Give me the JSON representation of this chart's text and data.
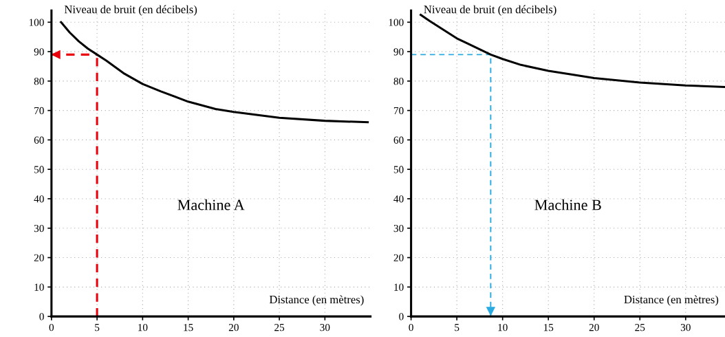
{
  "chart_data": [
    {
      "type": "line",
      "xlabel": "Distance (en mètres)",
      "ylabel": "Niveau de bruit (en décibels)",
      "annotations": [
        "Machine A"
      ],
      "x": [
        1.05,
        2,
        3,
        4,
        5,
        6,
        8,
        10,
        12,
        15,
        18,
        20,
        25,
        30,
        34.7
      ],
      "series": [
        {
          "color": "#000000",
          "values": [
            100,
            96.5,
            93.5,
            91,
            89,
            87,
            82.5,
            79,
            76.5,
            73,
            70.5,
            69.5,
            67.5,
            66.5,
            66
          ]
        }
      ],
      "xlim": [
        0,
        35
      ],
      "ylim": [
        0,
        104
      ],
      "xticks": [
        0,
        5,
        10,
        15,
        20,
        25,
        30
      ],
      "yticks": [
        0,
        10,
        20,
        30,
        40,
        50,
        60,
        70,
        80,
        90,
        100
      ],
      "grid": true,
      "marker": "none",
      "line_style": "solid",
      "ref_lines": [
        {
          "axis": "x",
          "value": 5,
          "color": "#e8000b",
          "line_style": "dashed"
        },
        {
          "axis": "y",
          "value": 89,
          "color": "#e8000b",
          "line_style": "dashed"
        }
      ]
    },
    {
      "type": "line",
      "xlabel": "Distance (en mètres)",
      "ylabel": "Niveau de bruit (en décibels)",
      "annotations": [
        "Machine B"
      ],
      "x": [
        1.05,
        2,
        3,
        4,
        5,
        6,
        8.7,
        10,
        12,
        15,
        18,
        20,
        25,
        30,
        34.3
      ],
      "series": [
        {
          "color": "#000000",
          "values": [
            102.5,
            100.5,
            98.5,
            96.5,
            94.5,
            93,
            89,
            87.5,
            85.5,
            83.5,
            82,
            81,
            79.5,
            78.5,
            78
          ]
        }
      ],
      "xlim": [
        0,
        34.3
      ],
      "ylim": [
        0,
        104
      ],
      "xticks": [
        0,
        5,
        10,
        15,
        20,
        25,
        30
      ],
      "yticks": [
        0,
        10,
        20,
        30,
        40,
        50,
        60,
        70,
        80,
        90,
        100
      ],
      "grid": true,
      "marker": "none",
      "line_style": "solid",
      "ref_lines": [
        {
          "axis": "x",
          "value": 8.7,
          "color": "#29abe2",
          "line_style": "dashed"
        },
        {
          "axis": "y",
          "value": 89,
          "color": "#29abe2",
          "line_style": "dashed"
        }
      ]
    }
  ]
}
